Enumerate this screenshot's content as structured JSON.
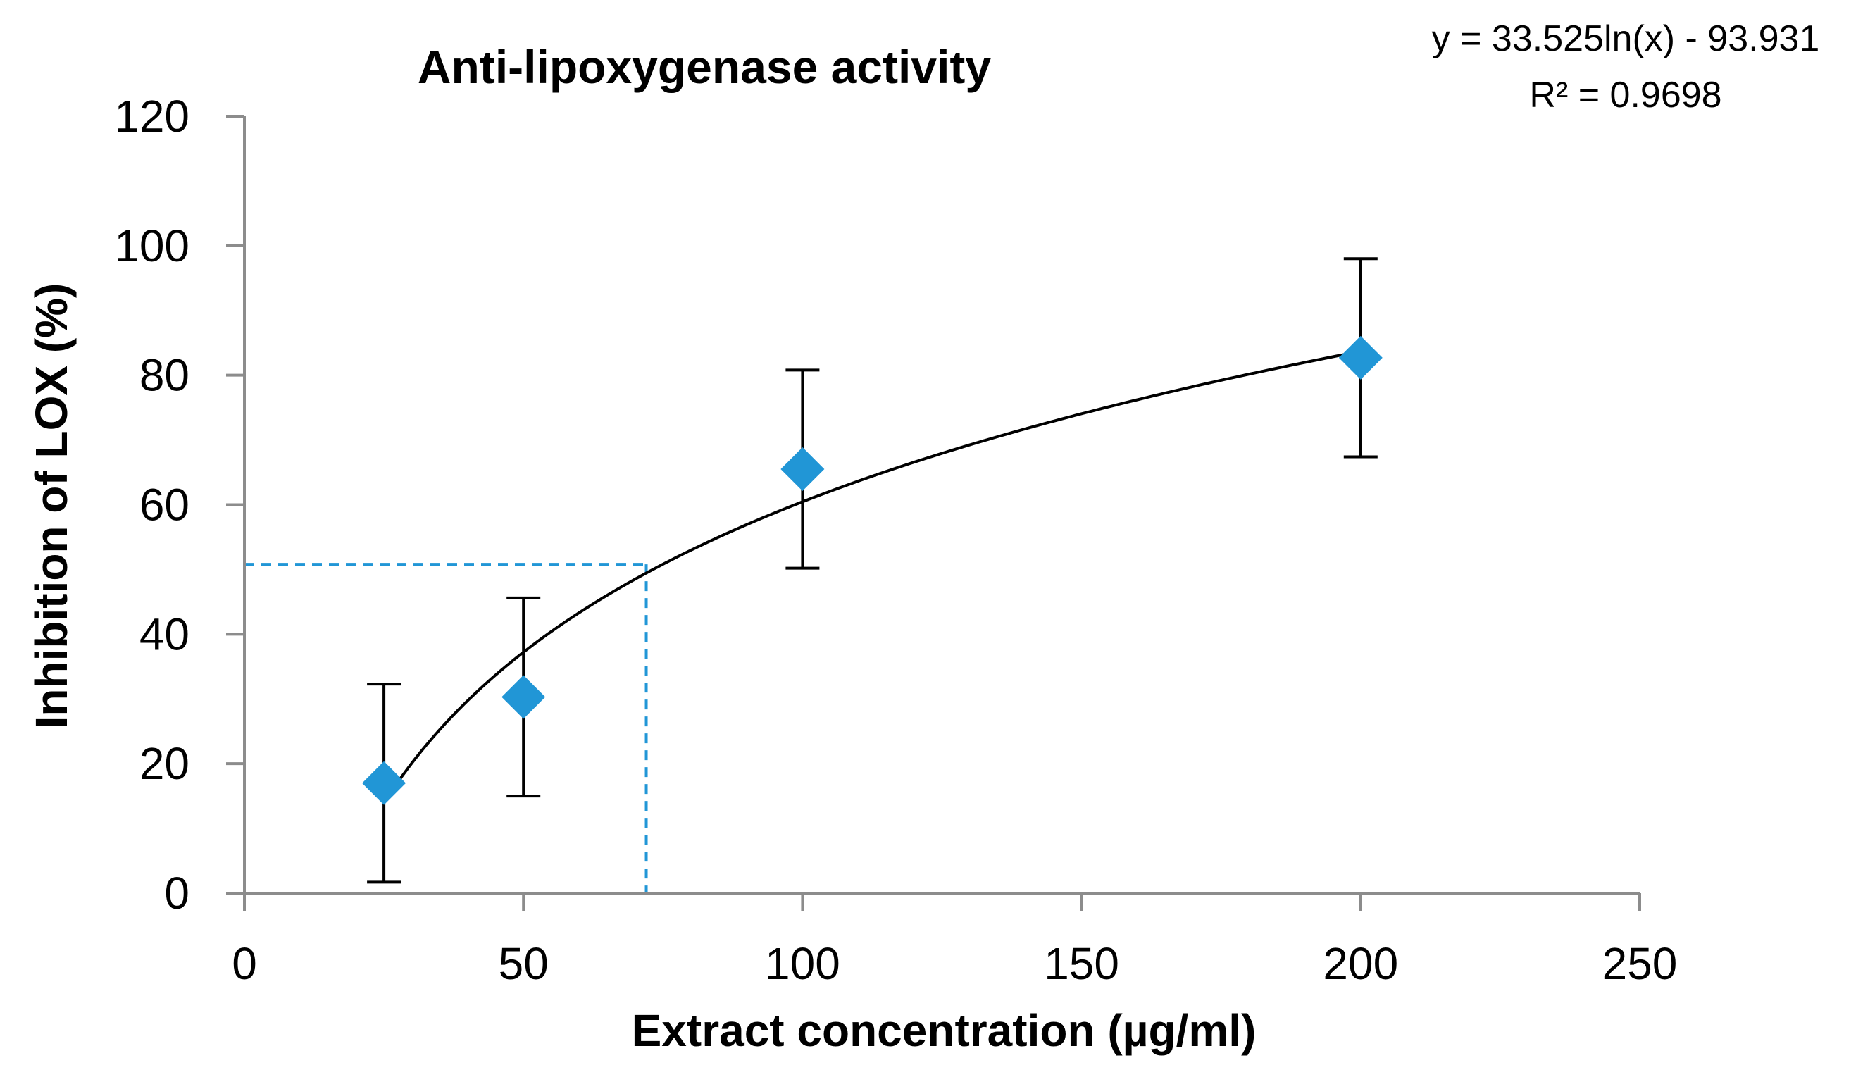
{
  "chart_data": {
    "type": "scatter",
    "title": "Anti-lipoxygenase activity",
    "xlabel": "Extract concentration (µg/ml)",
    "ylabel": "Inhibition of LOX (%)",
    "xlim": [
      0,
      250
    ],
    "ylim": [
      0,
      120
    ],
    "xticks": [
      0,
      50,
      100,
      150,
      200,
      250
    ],
    "yticks": [
      0,
      20,
      40,
      60,
      80,
      100,
      120
    ],
    "grid": false,
    "series": [
      {
        "name": "Inhibition of LOX",
        "x": [
          25,
          50,
          100,
          200
        ],
        "y": [
          17,
          30.3,
          65.5,
          82.7
        ],
        "error": [
          15.3,
          15.3,
          15.3,
          15.3
        ],
        "marker": "diamond",
        "color": "#2196D6"
      }
    ],
    "trendline": {
      "type": "logarithmic",
      "a": 33.525,
      "b": -93.931,
      "x_range": [
        25,
        200
      ],
      "equation": "y = 33.525ln(x) - 93.931",
      "r_squared": "R² = 0.9698",
      "color": "#000000"
    },
    "reference_lines": {
      "x": 72,
      "y": 50.8,
      "color": "#2196D6",
      "style": "dashed"
    }
  }
}
